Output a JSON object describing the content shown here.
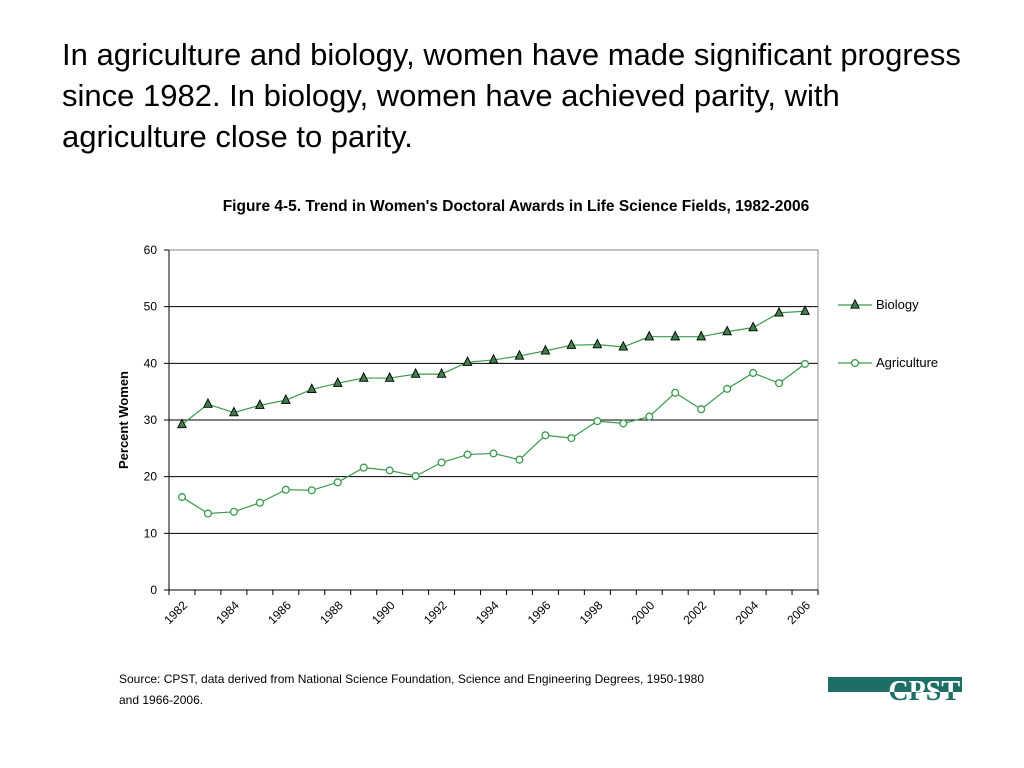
{
  "headline": "In agriculture and biology, women have made significant progress since 1982. In biology, women have achieved parity, with agriculture close to parity.",
  "source_line_1": "Source: CPST, data derived from National Science Foundation, Science and Engineering Degrees, 1950-1980",
  "source_line_2": "and 1966-2006.",
  "logo_text": "CPST",
  "chart_data": {
    "type": "line",
    "title": "Figure 4-5. Trend in Women's Doctoral Awards in Life Science Fields, 1982-2006",
    "xlabel": "",
    "ylabel": "Percent Women",
    "ylim": [
      0,
      60
    ],
    "yticks": [
      0,
      10,
      20,
      30,
      40,
      50,
      60
    ],
    "xtick_labels": [
      "1982",
      "1984",
      "1986",
      "1988",
      "1990",
      "1992",
      "1994",
      "1996",
      "1998",
      "2000",
      "2002",
      "2004",
      "2006"
    ],
    "x": [
      1982,
      1983,
      1984,
      1985,
      1986,
      1987,
      1988,
      1989,
      1990,
      1991,
      1992,
      1993,
      1994,
      1995,
      1996,
      1997,
      1998,
      1999,
      2000,
      2001,
      2002,
      2003,
      2004,
      2005,
      2006
    ],
    "series": [
      {
        "name": "Biology",
        "marker": "triangle",
        "color": "#3a9a4e",
        "values": [
          29.2,
          32.8,
          31.3,
          32.6,
          33.5,
          35.4,
          36.5,
          37.4,
          37.4,
          38.1,
          38.1,
          40.2,
          40.6,
          41.3,
          42.2,
          43.2,
          43.3,
          42.9,
          44.7,
          44.7,
          44.7,
          45.6,
          46.3,
          48.9,
          49.2
        ]
      },
      {
        "name": "Agriculture",
        "marker": "circle",
        "color": "#3a9a4e",
        "values": [
          16.4,
          13.5,
          13.8,
          15.4,
          17.7,
          17.6,
          19.0,
          21.6,
          21.1,
          20.1,
          22.5,
          23.9,
          24.1,
          23.0,
          27.3,
          26.8,
          29.8,
          29.4,
          30.6,
          34.8,
          31.9,
          35.5,
          38.3,
          36.5,
          39.9
        ]
      }
    ],
    "grid": "horizontal",
    "legend_position": "right"
  }
}
